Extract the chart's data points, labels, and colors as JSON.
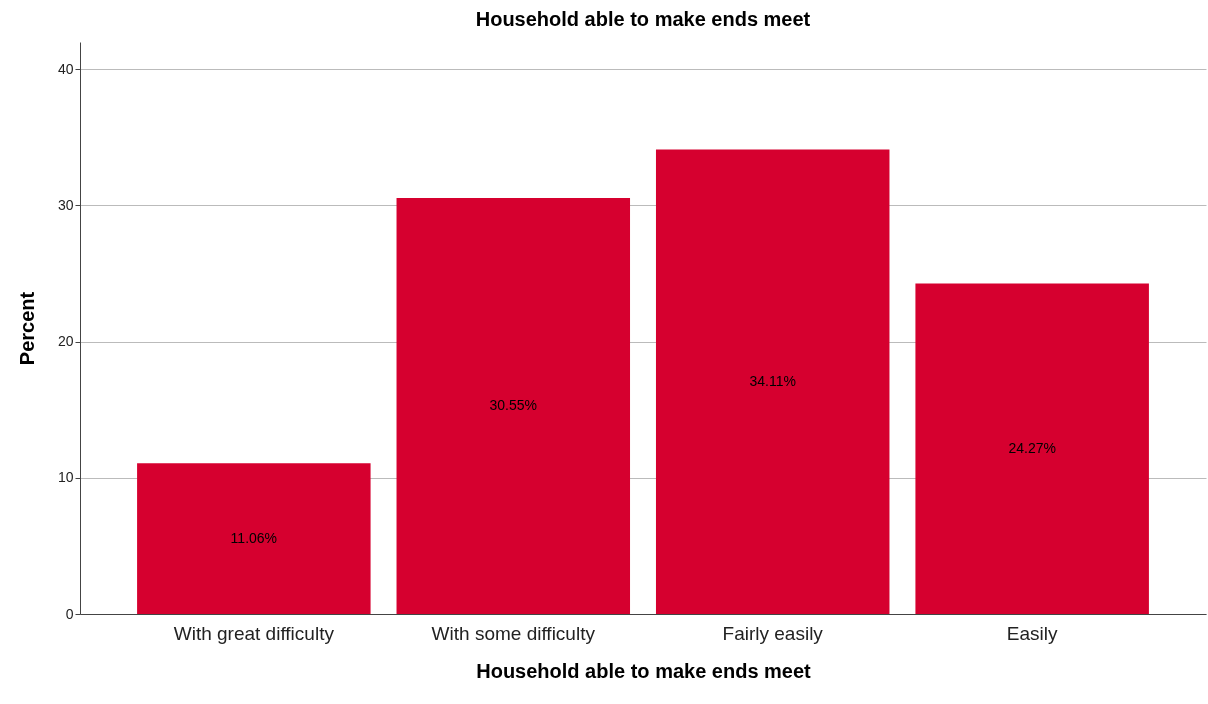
{
  "chart_data": {
    "type": "bar",
    "title": "Household able to make ends meet",
    "xlabel": "Household able to make ends meet",
    "ylabel": "Percent",
    "categories": [
      "With great difficulty",
      "With some difficulty",
      "Fairly easily",
      "Easily"
    ],
    "values": [
      11.06,
      30.55,
      34.11,
      24.27
    ],
    "value_labels": [
      "11.06%",
      "30.55%",
      "34.11%",
      "24.27%"
    ],
    "color": "#d6002f",
    "ylim": [
      0,
      42
    ],
    "yticks": [
      0,
      10,
      20,
      30,
      40
    ],
    "grid": "y"
  }
}
